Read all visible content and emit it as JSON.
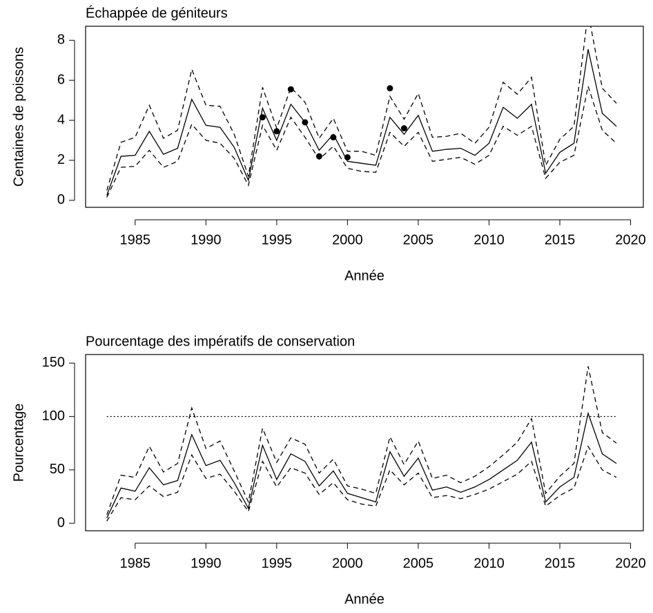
{
  "chart_data": [
    {
      "type": "line",
      "title": "Échappée de géniteurs",
      "xlabel": "Année",
      "ylabel": "Centaines de poissons",
      "x": [
        1983,
        1984,
        1985,
        1986,
        1987,
        1988,
        1989,
        1990,
        1991,
        1992,
        1993,
        1994,
        1995,
        1996,
        1997,
        1998,
        1999,
        2000,
        2001,
        2002,
        2003,
        2004,
        2005,
        2006,
        2007,
        2008,
        2009,
        2010,
        2011,
        2012,
        2013,
        2014,
        2015,
        2016,
        2017,
        2018,
        2019
      ],
      "xlim": [
        1981.5,
        2020.9
      ],
      "xticks": [
        1985,
        1990,
        1995,
        2000,
        2005,
        2010,
        2015,
        2020
      ],
      "ylim": [
        -0.35,
        8.7
      ],
      "yticks": [
        0,
        2,
        4,
        6,
        8
      ],
      "series": [
        {
          "color": "#000000",
          "style": "solid",
          "values": [
            0.25,
            2.2,
            2.25,
            3.45,
            2.3,
            2.6,
            5.05,
            3.75,
            3.65,
            2.65,
            1.0,
            4.6,
            3.0,
            4.8,
            3.9,
            2.5,
            3.3,
            1.95,
            1.85,
            1.75,
            4.15,
            3.3,
            4.25,
            2.45,
            2.55,
            2.6,
            2.25,
            2.85,
            4.65,
            4.1,
            4.8,
            1.35,
            2.4,
            2.85,
            7.55,
            4.35,
            3.7
          ]
        },
        {
          "color": "#000000",
          "style": "dashed",
          "values": [
            0.5,
            2.9,
            3.15,
            4.75,
            3.1,
            3.5,
            6.55,
            4.75,
            4.7,
            3.3,
            1.2,
            5.65,
            3.6,
            5.65,
            4.9,
            3.1,
            4.1,
            2.45,
            2.45,
            2.25,
            5.2,
            4.05,
            5.35,
            3.15,
            3.2,
            3.35,
            2.85,
            3.65,
            5.9,
            5.3,
            6.15,
            1.75,
            3.05,
            3.7,
            9.4,
            5.6,
            4.85
          ]
        },
        {
          "color": "#000000",
          "style": "dashed",
          "values": [
            0.15,
            1.65,
            1.7,
            2.5,
            1.65,
            1.95,
            3.8,
            3.0,
            2.85,
            2.1,
            0.75,
            3.75,
            2.5,
            4.15,
            3.15,
            2.05,
            2.7,
            1.6,
            1.45,
            1.4,
            3.4,
            2.7,
            3.4,
            1.95,
            2.05,
            2.15,
            1.8,
            2.25,
            3.7,
            3.25,
            3.7,
            1.1,
            1.9,
            2.25,
            5.7,
            3.5,
            2.85
          ]
        },
        {
          "color": "#000000",
          "type": "scatter",
          "x": [
            1994,
            1995,
            1996,
            1997,
            1998,
            1999,
            2000,
            2003,
            2004
          ],
          "values": [
            4.15,
            3.45,
            5.55,
            3.9,
            2.2,
            3.15,
            2.15,
            5.6,
            3.6
          ]
        }
      ]
    },
    {
      "type": "line",
      "title": "Pourcentage des impératifs de conservation",
      "xlabel": "Année",
      "ylabel": "Pourcentage",
      "x": [
        1983,
        1984,
        1985,
        1986,
        1987,
        1988,
        1989,
        1990,
        1991,
        1992,
        1993,
        1994,
        1995,
        1996,
        1997,
        1998,
        1999,
        2000,
        2001,
        2002,
        2003,
        2004,
        2005,
        2006,
        2007,
        2008,
        2009,
        2010,
        2011,
        2012,
        2013,
        2014,
        2015,
        2016,
        2017,
        2018,
        2019
      ],
      "xlim": [
        1981.5,
        2020.9
      ],
      "xticks": [
        1985,
        1990,
        1995,
        2000,
        2005,
        2010,
        2015,
        2020
      ],
      "ylim": [
        -7,
        158
      ],
      "yticks": [
        0,
        50,
        100,
        150
      ],
      "hline": {
        "value": 100,
        "style": "dotted",
        "color": "#000000"
      },
      "series": [
        {
          "color": "#000000",
          "style": "solid",
          "values": [
            5,
            33,
            30,
            52,
            36,
            40,
            83,
            54,
            59,
            38,
            14,
            73,
            41,
            65,
            58,
            35,
            49,
            28,
            24,
            20,
            67,
            44,
            61,
            31,
            34,
            29,
            34,
            41,
            50,
            59,
            76,
            20,
            34,
            43,
            103,
            65,
            56
          ]
        },
        {
          "color": "#000000",
          "style": "dashed",
          "values": [
            8,
            45,
            43,
            72,
            48,
            56,
            108,
            70,
            77,
            49,
            20,
            89,
            57,
            80,
            74,
            47,
            60,
            35,
            32,
            28,
            81,
            55,
            77,
            42,
            45,
            38,
            44,
            53,
            64,
            76,
            98,
            28,
            44,
            56,
            147,
            85,
            75
          ]
        },
        {
          "color": "#000000",
          "style": "dashed",
          "values": [
            2,
            24,
            22,
            35,
            25,
            29,
            64,
            42,
            46,
            30,
            11,
            58,
            34,
            52,
            47,
            27,
            38,
            22,
            18,
            16,
            50,
            36,
            47,
            24,
            26,
            23,
            27,
            32,
            39,
            46,
            58,
            16,
            26,
            33,
            72,
            50,
            43
          ]
        }
      ]
    }
  ]
}
